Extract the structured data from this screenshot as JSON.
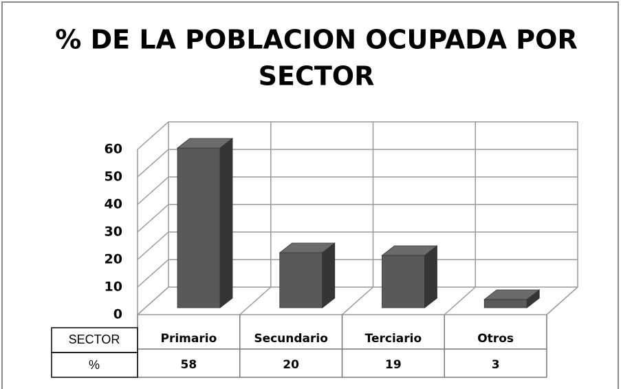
{
  "chart_data": {
    "type": "bar3d",
    "title_lines": [
      "% DE LA POBLACION OCUPADA POR",
      "SECTOR"
    ],
    "categories": [
      "Primario",
      "Secundario",
      "Terciario",
      "Otros"
    ],
    "values": [
      58,
      20,
      19,
      3
    ],
    "color": "#595959",
    "ylim": [
      0,
      60
    ],
    "yticks": [
      0,
      10,
      20,
      30,
      40,
      50,
      60
    ],
    "grid": true,
    "table_row_labels": [
      "SECTOR",
      "%"
    ]
  }
}
